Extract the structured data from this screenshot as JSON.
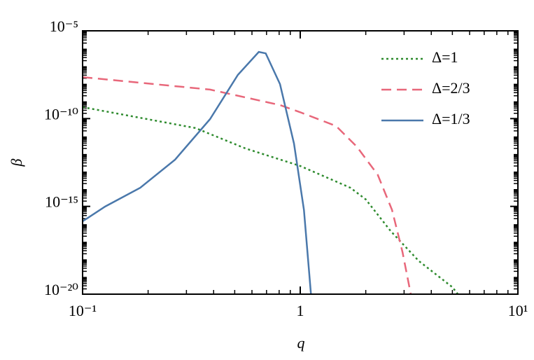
{
  "chart_data": {
    "type": "line",
    "xlabel": "q",
    "ylabel": "β",
    "xscale": "log",
    "yscale": "log",
    "xlim": [
      0.1,
      10
    ],
    "ylim": [
      1e-20,
      1e-05
    ],
    "xticks": [
      {
        "value": 0.1,
        "label": "10⁻¹"
      },
      1,
      {
        "value": 10,
        "label": "10¹"
      }
    ],
    "yticks": [
      {
        "value": 1e-20,
        "label": "10⁻²⁰"
      },
      {
        "value": 1e-15,
        "label": "10⁻¹⁵"
      },
      {
        "value": 1e-10,
        "label": "10⁻¹⁰"
      },
      {
        "value": 1e-05,
        "label": "10⁻⁵"
      }
    ],
    "legend": "upper right",
    "series": [
      {
        "name": "Δ=1",
        "color": "#2e8b2e",
        "linestyle": "dotted",
        "x": [
          0.1,
          0.33,
          0.56,
          1,
          1.7,
          2.0,
          2.6,
          3.5,
          5.0,
          5.3
        ],
        "values": [
          4.5e-10,
          2.9e-11,
          2e-12,
          2e-13,
          1.15e-14,
          2.5e-15,
          4e-17,
          7.9e-19,
          2.5e-20,
          1e-20
        ]
      },
      {
        "name": "Δ=2/3",
        "color": "#e8677a",
        "linestyle": "dashed",
        "x": [
          0.1,
          0.385,
          0.807,
          1,
          1.46,
          1.82,
          2.27,
          2.64,
          2.95,
          3.22
        ],
        "values": [
          2.3e-08,
          4.5e-09,
          5.9e-10,
          2.3e-10,
          3.8e-11,
          2.5e-12,
          6.3e-14,
          6.3e-16,
          2.5e-18,
          1e-20
        ]
      },
      {
        "name": "Δ=1/3",
        "color": "#4a78ab",
        "linestyle": "solid",
        "x": [
          0.1,
          0.127,
          0.184,
          0.266,
          0.385,
          0.517,
          0.645,
          0.694,
          0.807,
          0.936,
          1.04,
          1.12
        ],
        "values": [
          1.41e-16,
          9.8e-16,
          1.15e-14,
          4.6e-13,
          9.3e-11,
          3.1e-08,
          6.3e-07,
          5.2e-07,
          9.3e-09,
          3.8e-12,
          6.2e-16,
          1e-20
        ]
      }
    ]
  }
}
